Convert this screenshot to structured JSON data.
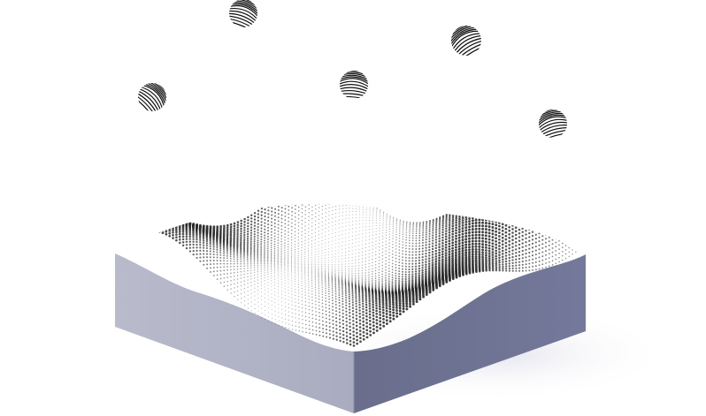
{
  "scene": {
    "spheres": [
      {
        "id": "sphere-1",
        "label": ""
      },
      {
        "id": "sphere-2",
        "label": ""
      },
      {
        "id": "sphere-3",
        "label": ""
      },
      {
        "id": "sphere-4",
        "label": ""
      },
      {
        "id": "sphere-5",
        "label": ""
      }
    ],
    "colors": {
      "block_left_face": "#b4b6c8",
      "block_right_face": "#6e7290",
      "terrain_dots": "#2a2a2a",
      "sphere_stripes": "#111111",
      "background": "#ffffff",
      "floor_shadow": "#e9eaf0"
    }
  }
}
